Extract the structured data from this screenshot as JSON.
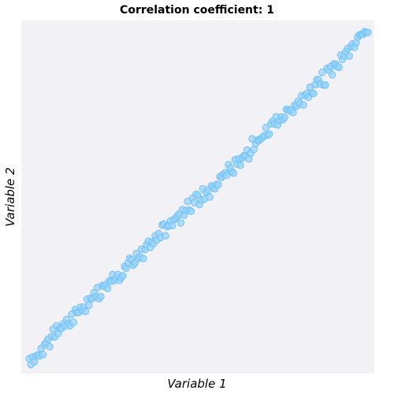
{
  "chart_data": {
    "type": "scatter",
    "title": "Correlation coefficient: 1",
    "xlabel": "Variable 1",
    "ylabel": "Variable 2",
    "xlim": [
      0,
      1
    ],
    "ylim": [
      0,
      1
    ],
    "grid": false,
    "colors": {
      "background": "#f2f1f5",
      "marker_fill": "#9bd3fa",
      "marker_edge": "#6cc1fb"
    },
    "x": [
      0.005,
      0.01,
      0.015,
      0.02,
      0.025,
      0.03,
      0.035,
      0.04,
      0.045,
      0.05,
      0.055,
      0.06,
      0.065,
      0.07,
      0.075,
      0.08,
      0.085,
      0.09,
      0.095,
      0.1,
      0.105,
      0.11,
      0.115,
      0.12,
      0.125,
      0.13,
      0.135,
      0.14,
      0.145,
      0.15,
      0.155,
      0.16,
      0.165,
      0.17,
      0.175,
      0.18,
      0.185,
      0.19,
      0.195,
      0.2,
      0.205,
      0.21,
      0.215,
      0.22,
      0.225,
      0.23,
      0.235,
      0.24,
      0.245,
      0.25,
      0.255,
      0.26,
      0.265,
      0.27,
      0.275,
      0.28,
      0.285,
      0.29,
      0.295,
      0.3,
      0.305,
      0.31,
      0.315,
      0.32,
      0.325,
      0.33,
      0.335,
      0.34,
      0.345,
      0.35,
      0.355,
      0.36,
      0.365,
      0.37,
      0.375,
      0.38,
      0.385,
      0.39,
      0.395,
      0.4,
      0.405,
      0.41,
      0.415,
      0.42,
      0.425,
      0.43,
      0.435,
      0.44,
      0.445,
      0.45,
      0.455,
      0.46,
      0.465,
      0.47,
      0.475,
      0.48,
      0.485,
      0.49,
      0.495,
      0.5,
      0.505,
      0.51,
      0.515,
      0.52,
      0.525,
      0.53,
      0.535,
      0.54,
      0.545,
      0.55,
      0.555,
      0.56,
      0.565,
      0.57,
      0.575,
      0.58,
      0.585,
      0.59,
      0.595,
      0.6,
      0.605,
      0.61,
      0.615,
      0.62,
      0.625,
      0.63,
      0.635,
      0.64,
      0.645,
      0.65,
      0.655,
      0.66,
      0.665,
      0.67,
      0.675,
      0.68,
      0.685,
      0.69,
      0.695,
      0.7,
      0.705,
      0.71,
      0.715,
      0.72,
      0.725,
      0.73,
      0.735,
      0.74,
      0.745,
      0.75,
      0.755,
      0.76,
      0.765,
      0.77,
      0.775,
      0.78,
      0.785,
      0.79,
      0.795,
      0.8,
      0.805,
      0.81,
      0.815,
      0.82,
      0.825,
      0.83,
      0.835,
      0.84,
      0.845,
      0.85,
      0.855,
      0.86,
      0.865,
      0.87,
      0.875,
      0.88,
      0.885,
      0.89,
      0.895,
      0.9,
      0.905,
      0.91,
      0.915,
      0.92,
      0.925,
      0.93,
      0.935,
      0.94,
      0.945,
      0.95,
      0.955,
      0.96,
      0.965,
      0.97,
      0.975,
      0.98,
      0.985,
      0.99,
      0.995,
      1.0
    ],
    "y": [
      0.025,
      0.008,
      0.03,
      0.016,
      0.033,
      0.036,
      0.033,
      0.055,
      0.037,
      0.067,
      0.072,
      0.082,
      0.06,
      0.09,
      0.112,
      0.089,
      0.122,
      0.099,
      0.114,
      0.114,
      0.128,
      0.121,
      0.14,
      0.128,
      0.122,
      0.156,
      0.132,
      0.169,
      0.161,
      0.161,
      0.176,
      0.168,
      0.177,
      0.164,
      0.2,
      0.182,
      0.203,
      0.201,
      0.219,
      0.207,
      0.234,
      0.201,
      0.208,
      0.24,
      0.237,
      0.243,
      0.231,
      0.254,
      0.252,
      0.272,
      0.254,
      0.261,
      0.272,
      0.255,
      0.264,
      0.269,
      0.296,
      0.291,
      0.306,
      0.32,
      0.316,
      0.3,
      0.306,
      0.334,
      0.319,
      0.324,
      0.347,
      0.319,
      0.346,
      0.36,
      0.37,
      0.352,
      0.368,
      0.363,
      0.386,
      0.374,
      0.393,
      0.381,
      0.418,
      0.421,
      0.386,
      0.413,
      0.416,
      0.43,
      0.416,
      0.434,
      0.439,
      0.444,
      0.45,
      0.424,
      0.463,
      0.447,
      0.46,
      0.487,
      0.462,
      0.458,
      0.497,
      0.484,
      0.508,
      0.505,
      0.478,
      0.491,
      0.524,
      0.494,
      0.514,
      0.52,
      0.5,
      0.533,
      0.529,
      0.524,
      0.537,
      0.536,
      0.56,
      0.558,
      0.567,
      0.571,
      0.564,
      0.595,
      0.585,
      0.574,
      0.57,
      0.61,
      0.597,
      0.612,
      0.593,
      0.614,
      0.621,
      0.622,
      0.638,
      0.612,
      0.629,
      0.671,
      0.64,
      0.657,
      0.667,
      0.666,
      0.671,
      0.675,
      0.68,
      0.704,
      0.682,
      0.685,
      0.715,
      0.723,
      0.715,
      0.736,
      0.712,
      0.725,
      0.735,
      0.727,
      0.734,
      0.757,
      0.757,
      0.753,
      0.756,
      0.748,
      0.77,
      0.767,
      0.782,
      0.775,
      0.798,
      0.77,
      0.798,
      0.804,
      0.793,
      0.823,
      0.806,
      0.804,
      0.83,
      0.845,
      0.843,
      0.832,
      0.866,
      0.829,
      0.829,
      0.878,
      0.872,
      0.883,
      0.859,
      0.891,
      0.89,
      0.883,
      0.881,
      0.917,
      0.904,
      0.914,
      0.927,
      0.936,
      0.914,
      0.942,
      0.95,
      0.939,
      0.953,
      0.97,
      0.976,
      0.978,
      0.978,
      0.986,
      0.983,
      0.983
    ]
  }
}
